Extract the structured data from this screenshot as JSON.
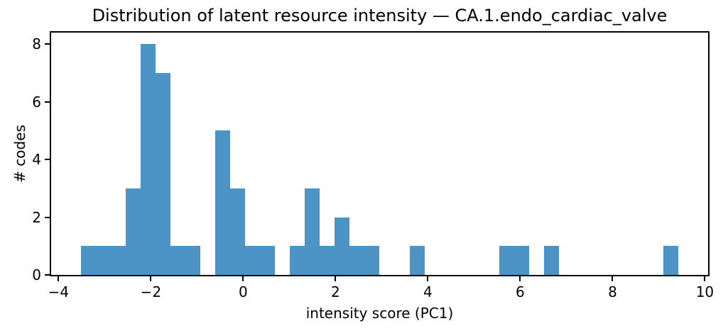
{
  "chart_data": {
    "type": "bar",
    "subtype": "histogram",
    "title": "Distribution of latent resource intensity — CA.1.endo_cardiac_valve",
    "xlabel": "intensity score (PC1)",
    "ylabel": "# codes",
    "bar_color": "#4c93c6",
    "axis_color": "#000000",
    "background_color": "#ffffff",
    "bin_start": -3.51,
    "bin_width": 0.32325,
    "counts": [
      1,
      1,
      1,
      3,
      8,
      7,
      1,
      1,
      0,
      5,
      3,
      1,
      1,
      0,
      1,
      3,
      1,
      2,
      1,
      1,
      0,
      0,
      1,
      0,
      0,
      0,
      0,
      0,
      1,
      1,
      0,
      1,
      0,
      0,
      0,
      0,
      0,
      0,
      0,
      1
    ],
    "total_codes": 47,
    "xlim": [
      -4.16,
      10.07
    ],
    "ylim": [
      0,
      8.4
    ],
    "xticks": [
      -4,
      -2,
      0,
      2,
      4,
      6,
      8,
      10
    ],
    "xtick_labels": [
      "−4",
      "−2",
      "0",
      "2",
      "4",
      "6",
      "8",
      "10"
    ],
    "yticks": [
      0,
      2,
      4,
      6,
      8
    ],
    "ytick_labels": [
      "0",
      "2",
      "4",
      "6",
      "8"
    ],
    "grid": false,
    "legend": false
  }
}
